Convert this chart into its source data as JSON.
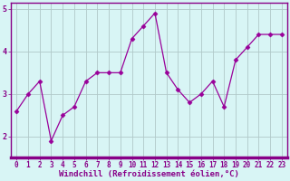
{
  "x": [
    0,
    1,
    2,
    3,
    4,
    5,
    6,
    7,
    8,
    9,
    10,
    11,
    12,
    13,
    14,
    15,
    16,
    17,
    18,
    19,
    20,
    21,
    22,
    23
  ],
  "y": [
    2.6,
    3.0,
    3.3,
    1.9,
    2.5,
    2.7,
    3.3,
    3.5,
    3.5,
    3.5,
    4.3,
    4.6,
    4.9,
    3.5,
    3.1,
    2.8,
    3.0,
    3.3,
    2.7,
    3.8,
    4.1,
    4.4,
    4.4,
    4.4
  ],
  "line_color": "#990099",
  "marker": "D",
  "marker_size": 2.5,
  "bg_color": "#d8f5f5",
  "grid_color": "#b0c8c8",
  "xlabel": "Windchill (Refroidissement éolien,°C)",
  "ylabel": "",
  "ylim": [
    1.5,
    5.15
  ],
  "xlim": [
    -0.5,
    23.5
  ],
  "yticks": [
    2,
    3,
    4,
    5
  ],
  "xticks": [
    0,
    1,
    2,
    3,
    4,
    5,
    6,
    7,
    8,
    9,
    10,
    11,
    12,
    13,
    14,
    15,
    16,
    17,
    18,
    19,
    20,
    21,
    22,
    23
  ],
  "tick_fontsize": 5.5,
  "xlabel_fontsize": 6.5,
  "tick_color": "#880088",
  "xlabel_color": "#880088",
  "spine_color": "#880088",
  "spine_bottom_width": 2.5
}
